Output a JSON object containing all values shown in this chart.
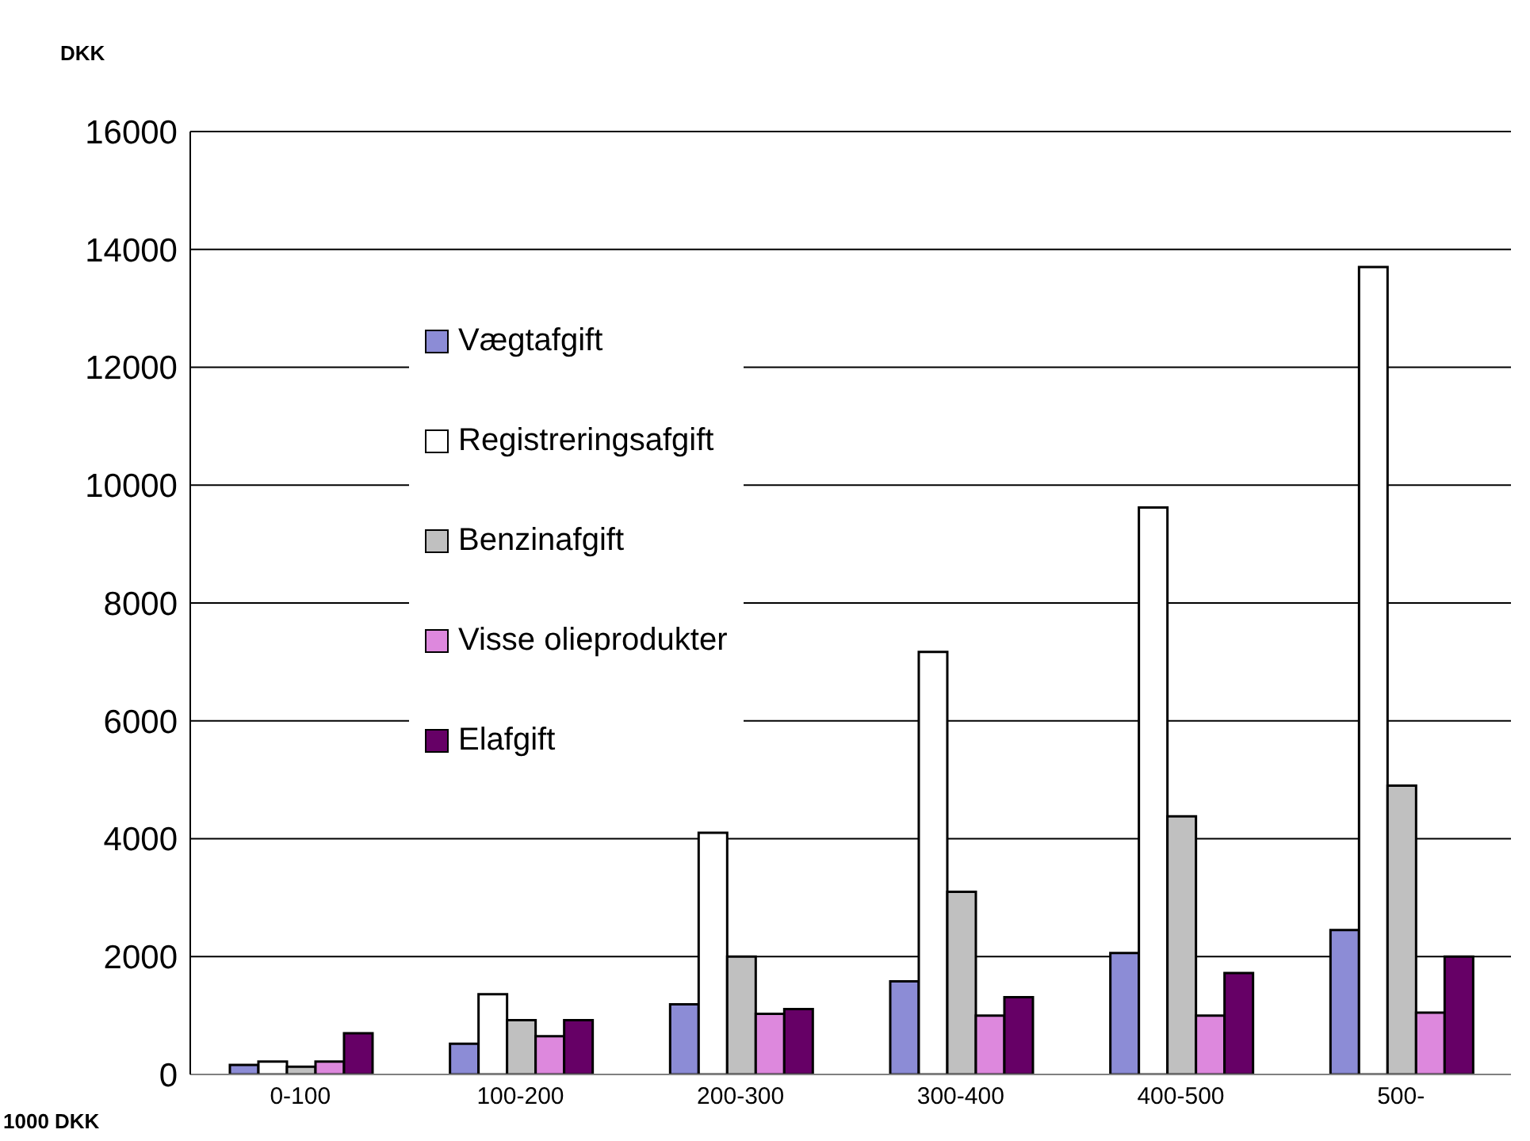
{
  "chart_data": {
    "type": "bar",
    "ylabel": "DKK",
    "xlabel": "1000 DKK",
    "categories": [
      "0-100",
      "100-200",
      "200-300",
      "300-400",
      "400-500",
      "500-"
    ],
    "series": [
      {
        "name": "Vægtafgift",
        "color": "#8c8cd6",
        "values": [
          160,
          520,
          1190,
          1580,
          2060,
          2450
        ]
      },
      {
        "name": "Registreringsafgift",
        "color": "#ffffff",
        "values": [
          220,
          1360,
          4100,
          7170,
          9620,
          13700
        ]
      },
      {
        "name": "Benzinafgift",
        "color": "#c0c0c0",
        "values": [
          130,
          920,
          2000,
          3100,
          4380,
          4900
        ]
      },
      {
        "name": "Visse olieprodukter",
        "color": "#dd88dd",
        "values": [
          220,
          650,
          1030,
          1000,
          1000,
          1050
        ]
      },
      {
        "name": "Elafgift",
        "color": "#660066",
        "values": [
          700,
          920,
          1110,
          1310,
          1720,
          2000
        ]
      }
    ],
    "ylim": [
      0,
      16000
    ],
    "yticks": [
      0,
      2000,
      4000,
      6000,
      8000,
      10000,
      12000,
      14000,
      16000
    ],
    "grid": "y",
    "legend": "top left"
  }
}
